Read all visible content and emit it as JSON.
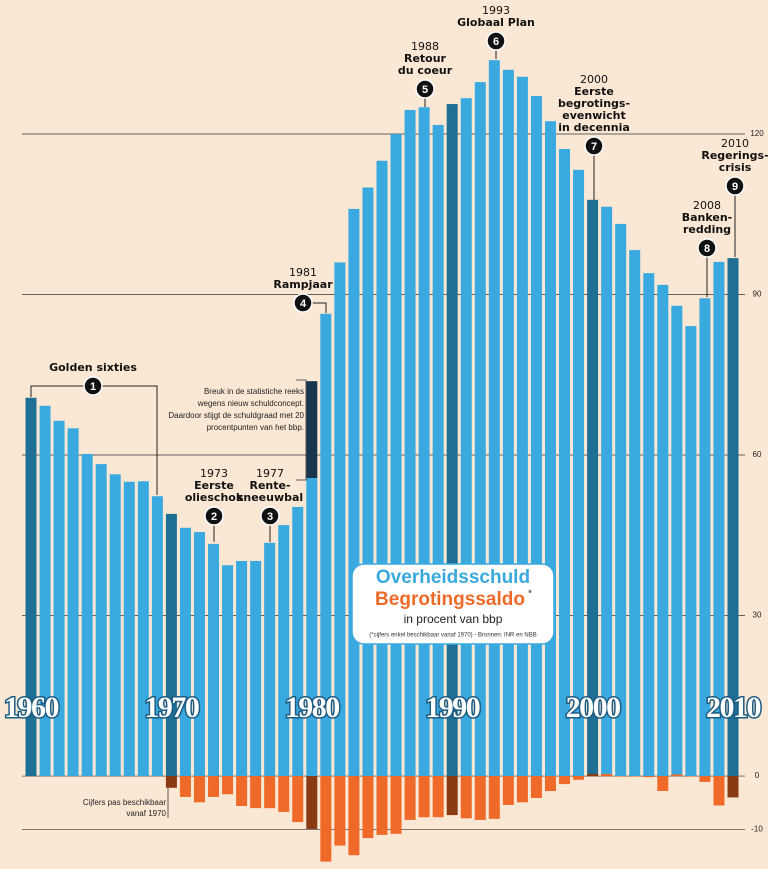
{
  "chart_data": {
    "type": "bar",
    "categories": [
      "1960",
      null,
      null,
      null,
      null,
      null,
      null,
      null,
      null,
      null,
      "1970",
      null,
      null,
      null,
      null,
      null,
      null,
      null,
      null,
      null,
      "1980",
      null,
      null,
      null,
      null,
      null,
      null,
      null,
      null,
      null,
      "1990",
      null,
      null,
      null,
      null,
      null,
      null,
      null,
      null,
      null,
      "2000",
      null,
      null,
      null,
      null,
      null,
      null,
      null,
      null,
      null,
      "2010"
    ],
    "series": [
      {
        "name": "Overheidsschuld",
        "color": "#3aa9df",
        "accent_color": "#1f6e94",
        "values": [
          70.7,
          69.2,
          66.4,
          65,
          60.2,
          58.3,
          56.4,
          55,
          55.1,
          52.3,
          49,
          46.4,
          45.6,
          43.4,
          39.4,
          40.2,
          40.2,
          43.6,
          46.9,
          50.3,
          73.8,
          86.4,
          96,
          106,
          110,
          115,
          120,
          124.5,
          125,
          121.7,
          125.6,
          126.7,
          129.7,
          133.8,
          132,
          130.7,
          127.1,
          122.4,
          117.2,
          113.3,
          107.7,
          106.4,
          103.2,
          98.3,
          94,
          91.8,
          87.9,
          84.1,
          89.3,
          96.1,
          96.8
        ]
      },
      {
        "name": "Begrotingssaldo",
        "color": "#ef6a28",
        "accent_color": "#8a3b13",
        "values": [
          null,
          null,
          null,
          null,
          null,
          null,
          null,
          null,
          null,
          null,
          -2.2,
          -3.9,
          -4.9,
          -3.9,
          -3.4,
          -5.6,
          -6,
          -6,
          -6.7,
          -8.6,
          -9.9,
          -16,
          -13,
          -14.8,
          -11.6,
          -11,
          -10.8,
          -8.2,
          -7.7,
          -7.7,
          -7.3,
          -7.9,
          -8.2,
          -8,
          -5.4,
          -4.9,
          -4.1,
          -2.8,
          -1.5,
          -0.7,
          0.4,
          0.4,
          -0.1,
          -0.1,
          -0.2,
          -2.8,
          0.3,
          -0.1,
          -1.1,
          -5.5,
          -4
        ]
      }
    ],
    "break_value": 55.7,
    "break_color": "#17364e",
    "ylim": [
      -17,
      140
    ],
    "yticks": [
      -10,
      0,
      30,
      60,
      90,
      120
    ],
    "grid": true,
    "legend": {
      "marker": "*",
      "subtitle": "in procent van bbp",
      "footnote": "(*cijfers enkel beschikbaar vanaf 1970)  -  Bronnen: INR en NBB"
    },
    "notes": [
      [
        "Breuk in de statistiche reeks",
        "wegens nieuw schuldconcept.",
        "Daardoor stijgt de schuldgraad met 20",
        "procentpunten van het bbp."
      ],
      [
        "Cijfers pas beschikbaar",
        "vanaf 1970"
      ]
    ],
    "annotations": [
      {
        "number": "1",
        "lines": [
          "Golden sixties"
        ]
      },
      {
        "number": "2",
        "year": "1973",
        "lines": [
          "Eerste",
          "olieschok"
        ]
      },
      {
        "number": "3",
        "year": "1977",
        "lines": [
          "Rente-",
          "sneeuwbal"
        ]
      },
      {
        "number": "4",
        "year": "1981",
        "lines": [
          "Rampjaar"
        ]
      },
      {
        "number": "5",
        "year": "1988",
        "lines": [
          "Retour",
          "du coeur"
        ]
      },
      {
        "number": "6",
        "year": "1993",
        "lines": [
          "Globaal Plan"
        ]
      },
      {
        "number": "7",
        "year": "2000",
        "lines": [
          "Eerste",
          "begrotings-",
          "evenwicht",
          "in decennia"
        ]
      },
      {
        "number": "8",
        "year": "2008",
        "lines": [
          "Banken-",
          "redding"
        ]
      },
      {
        "number": "9",
        "year": "2010",
        "lines": [
          "Regerings-",
          "crisis"
        ]
      }
    ]
  }
}
